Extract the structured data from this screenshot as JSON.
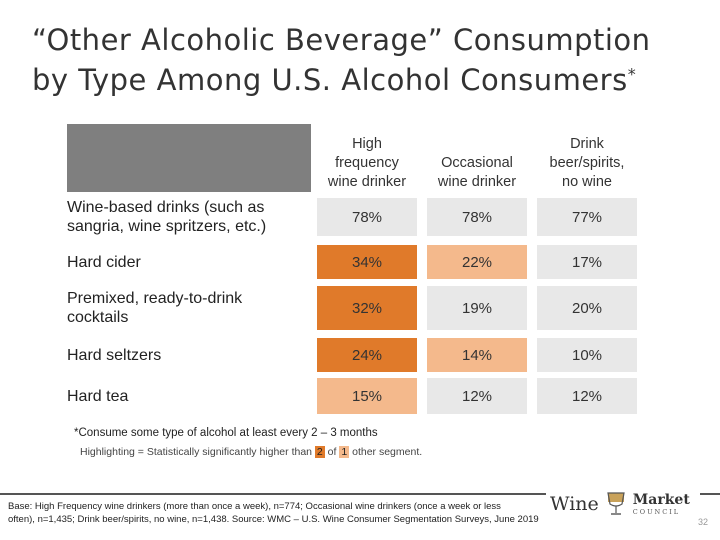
{
  "title": {
    "line1": "“Other Alcoholic Beverage” Consumption",
    "line2": "by Type Among U.S. Alcohol Consumers",
    "marker": "*"
  },
  "table": {
    "headers": [
      {
        "line1": "High",
        "line2": "frequency",
        "line3": "wine drinker"
      },
      {
        "line1": "Occasional",
        "line2": "wine drinker"
      },
      {
        "line1": "Drink",
        "line2": "beer/spirits,",
        "line3": "no wine"
      }
    ],
    "rows": [
      {
        "label_line1": "Wine-based drinks (such as",
        "label_line2": "sangria, wine spritzers, etc.)",
        "values": [
          "78%",
          "78%",
          "77%"
        ]
      },
      {
        "label_line1": "Hard cider",
        "values": [
          "34%",
          "22%",
          "17%"
        ]
      },
      {
        "label_line1": "Premixed, ready-to-drink",
        "label_line2": "cocktails",
        "values": [
          "32%",
          "19%",
          "20%"
        ]
      },
      {
        "label_line1": "Hard seltzers",
        "values": [
          "24%",
          "14%",
          "10%"
        ]
      },
      {
        "label_line1": "Hard tea",
        "values": [
          "15%",
          "12%",
          "12%"
        ]
      }
    ],
    "colors": {
      "dark": "#e07a2a",
      "light": "#f4b98c",
      "neutral": "#e8e8e8",
      "header_blank": "#7f7f7f"
    }
  },
  "notes": {
    "footnote": "*Consume some type of alcohol at least every 2 – 3 months",
    "legend_prefix": "Highlighting = Statistically significantly higher than ",
    "legend_num_two": "2",
    "legend_of": " of ",
    "legend_num_one": "1",
    "legend_suffix": " other segment."
  },
  "footer": {
    "base_line1": "Base: High Frequency wine drinkers (more than once a week), n=774; Occasional wine drinkers (once a week or less",
    "base_line2": "often), n=1,435; Drink beer/spirits, no wine, n=1,438.  Source: WMC – U.S. Wine Consumer Segmentation Surveys, June 2019",
    "logo_wine": "Wine",
    "logo_market": "Market",
    "logo_council": "COUNCIL",
    "page_number": "32"
  }
}
